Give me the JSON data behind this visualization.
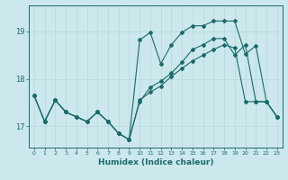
{
  "xlabel": "Humidex (Indice chaleur)",
  "bg_color": "#cce8ec",
  "line_color": "#1a6b6b",
  "grid_color": "#b8d8dc",
  "xlim": [
    -0.5,
    23.5
  ],
  "ylim": [
    16.55,
    19.55
  ],
  "yticks": [
    17,
    18,
    19
  ],
  "xticks": [
    0,
    1,
    2,
    3,
    4,
    5,
    6,
    7,
    8,
    9,
    10,
    11,
    12,
    13,
    14,
    15,
    16,
    17,
    18,
    19,
    20,
    21,
    22,
    23
  ],
  "line1_x": [
    0,
    1,
    2,
    3,
    4,
    5,
    6,
    7,
    8,
    9,
    10,
    11,
    12,
    13,
    14,
    15,
    16,
    17,
    18,
    19,
    20,
    21,
    22,
    23
  ],
  "line1_y": [
    17.65,
    17.1,
    17.55,
    17.3,
    17.2,
    17.1,
    17.3,
    17.1,
    16.85,
    16.72,
    18.82,
    18.98,
    18.32,
    18.72,
    18.98,
    19.12,
    19.12,
    19.22,
    19.22,
    19.22,
    18.52,
    18.7,
    17.52,
    17.2
  ],
  "line2_x": [
    0,
    1,
    2,
    3,
    4,
    5,
    6,
    7,
    8,
    9,
    10,
    11,
    12,
    13,
    14,
    15,
    16,
    17,
    18,
    19,
    20,
    21,
    22,
    23
  ],
  "line2_y": [
    17.65,
    17.1,
    17.55,
    17.3,
    17.2,
    17.1,
    17.3,
    17.1,
    16.85,
    16.72,
    17.52,
    17.82,
    17.95,
    18.12,
    18.35,
    18.62,
    18.72,
    18.85,
    18.85,
    18.5,
    18.72,
    17.52,
    17.52,
    17.2
  ],
  "line3_x": [
    0,
    1,
    2,
    3,
    4,
    5,
    6,
    7,
    8,
    9,
    10,
    11,
    12,
    13,
    14,
    15,
    16,
    17,
    18,
    19,
    20,
    21,
    22,
    23
  ],
  "line3_y": [
    17.65,
    17.1,
    17.55,
    17.3,
    17.2,
    17.1,
    17.3,
    17.1,
    16.85,
    16.72,
    17.55,
    17.72,
    17.85,
    18.05,
    18.22,
    18.38,
    18.5,
    18.62,
    18.72,
    18.65,
    17.52,
    17.52,
    17.52,
    17.2
  ]
}
